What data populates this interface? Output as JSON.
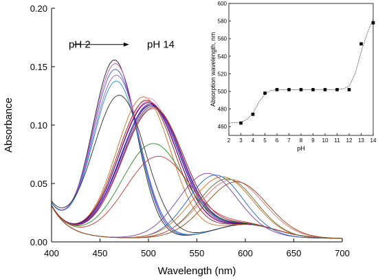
{
  "chart_data": [
    {
      "type": "line",
      "title": "",
      "xlabel": "Wavelength (nm)",
      "ylabel": "Absorbance",
      "xlim": [
        400,
        700
      ],
      "ylim": [
        0,
        0.2
      ],
      "xticks": [
        400,
        450,
        500,
        550,
        600,
        650,
        700
      ],
      "yticks": [
        0.0,
        0.05,
        0.1,
        0.15,
        0.2
      ],
      "ytick_labels": [
        "0.00",
        "0.05",
        "0.10",
        "0.15",
        "0.20"
      ],
      "grid": false,
      "legend": "none",
      "annotation": {
        "from": "pH 2",
        "to": "pH 14",
        "x_start": 423,
        "x_end": 480,
        "y": 0.169
      },
      "series": [
        {
          "color": "#1a1a1a",
          "peak": 465,
          "amp": 0.152,
          "width": 32
        },
        {
          "color": "#c24fc0",
          "peak": 466,
          "amp": 0.149,
          "width": 33
        },
        {
          "color": "#3a5fcd",
          "peak": 466,
          "amp": 0.144,
          "width": 33
        },
        {
          "color": "#9b59d0",
          "peak": 467,
          "amp": 0.139,
          "width": 34
        },
        {
          "color": "#1e90c8",
          "peak": 467,
          "amp": 0.134,
          "width": 34
        },
        {
          "color": "#2b2b2b",
          "peak": 470,
          "amp": 0.122,
          "width": 38
        },
        {
          "color": "#d2691e",
          "peak": 495,
          "amp": 0.121,
          "width": 40
        },
        {
          "color": "#e0a0c0",
          "peak": 500,
          "amp": 0.12,
          "width": 42
        },
        {
          "color": "#8b1a1a",
          "peak": 498,
          "amp": 0.118,
          "width": 42
        },
        {
          "color": "#d12d8b",
          "peak": 500,
          "amp": 0.117,
          "width": 43
        },
        {
          "color": "#4b0082",
          "peak": 500,
          "amp": 0.116,
          "width": 43
        },
        {
          "color": "#6a1b9a",
          "peak": 502,
          "amp": 0.115,
          "width": 43
        },
        {
          "color": "#1f3fbf",
          "peak": 502,
          "amp": 0.114,
          "width": 44
        },
        {
          "color": "#800080",
          "peak": 503,
          "amp": 0.114,
          "width": 44
        },
        {
          "color": "#2e2e8a",
          "peak": 504,
          "amp": 0.113,
          "width": 44
        },
        {
          "color": "#a0522d",
          "peak": 505,
          "amp": 0.112,
          "width": 45
        },
        {
          "color": "#b03060",
          "peak": 505,
          "amp": 0.111,
          "width": 45
        },
        {
          "color": "#228b22",
          "peak": 505,
          "amp": 0.081,
          "width": 46
        },
        {
          "color": "#cc3333",
          "peak": 510,
          "amp": 0.07,
          "width": 48
        },
        {
          "color": "#7b3fa0",
          "peak": 560,
          "amp": 0.054,
          "width": 42
        },
        {
          "color": "#1e60c8",
          "peak": 568,
          "amp": 0.052,
          "width": 40
        },
        {
          "color": "#d2691e",
          "peak": 575,
          "amp": 0.05,
          "width": 44
        },
        {
          "color": "#556b2f",
          "peak": 580,
          "amp": 0.048,
          "width": 42
        },
        {
          "color": "#e07070",
          "peak": 585,
          "amp": 0.047,
          "width": 46
        },
        {
          "color": "#8b4513",
          "peak": 590,
          "amp": 0.045,
          "width": 45
        }
      ]
    },
    {
      "type": "scatter",
      "title": "",
      "xlabel": "pH",
      "ylabel": "Absorption wavelength, nm",
      "xlim": [
        2,
        14
      ],
      "ylim": [
        450,
        600
      ],
      "xticks": [
        2,
        3,
        4,
        5,
        6,
        7,
        8,
        9,
        10,
        11,
        12,
        13,
        14
      ],
      "yticks": [
        460,
        480,
        500,
        520,
        540,
        560,
        580,
        600
      ],
      "grid": false,
      "legend": "none",
      "x": [
        3,
        4,
        5,
        6,
        7,
        8,
        9,
        10,
        11,
        12,
        13,
        14
      ],
      "y": [
        464,
        474,
        498,
        502,
        502,
        502,
        502,
        502,
        502,
        502,
        554,
        578
      ],
      "fit_curve": [
        [
          2,
          464
        ],
        [
          3,
          465
        ],
        [
          3.5,
          468
        ],
        [
          4,
          475
        ],
        [
          4.5,
          488
        ],
        [
          5,
          497
        ],
        [
          5.5,
          501
        ],
        [
          6,
          502
        ],
        [
          7,
          502
        ],
        [
          8,
          502
        ],
        [
          9,
          502
        ],
        [
          10,
          502
        ],
        [
          11,
          502
        ],
        [
          11.5,
          503
        ],
        [
          12,
          506
        ],
        [
          12.5,
          520
        ],
        [
          13,
          545
        ],
        [
          13.5,
          566
        ],
        [
          14,
          582
        ]
      ]
    }
  ]
}
